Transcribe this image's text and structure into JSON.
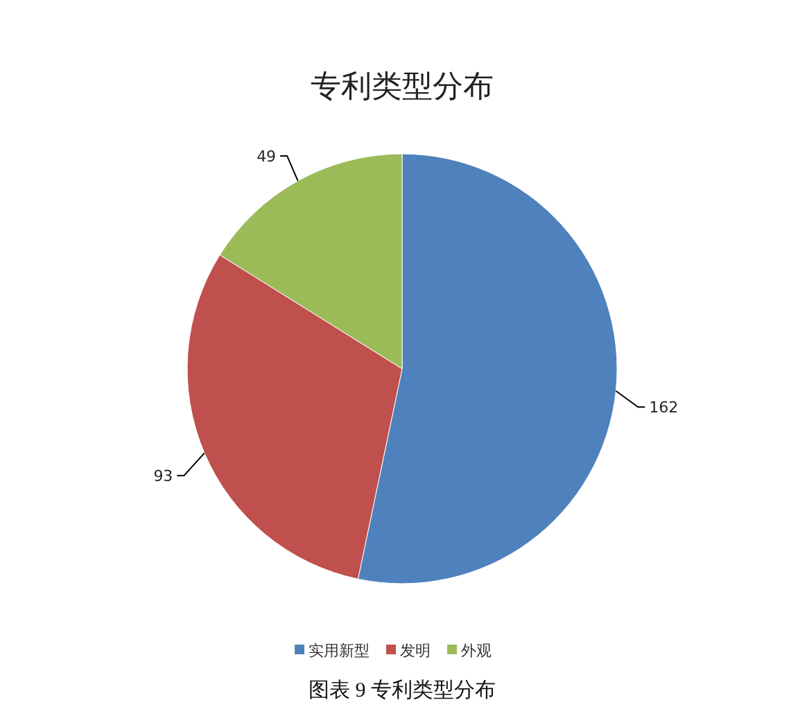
{
  "chart_data": {
    "type": "pie",
    "title": "专利类型分布",
    "categories": [
      "实用新型",
      "发明",
      "外观"
    ],
    "values": [
      162,
      93,
      49
    ],
    "colors": [
      "#4f81bd",
      "#c0504d",
      "#9bbb59"
    ],
    "data_labels": true,
    "legend": "bottom",
    "annotations": [
      "图表 9 专利类型分布"
    ]
  }
}
